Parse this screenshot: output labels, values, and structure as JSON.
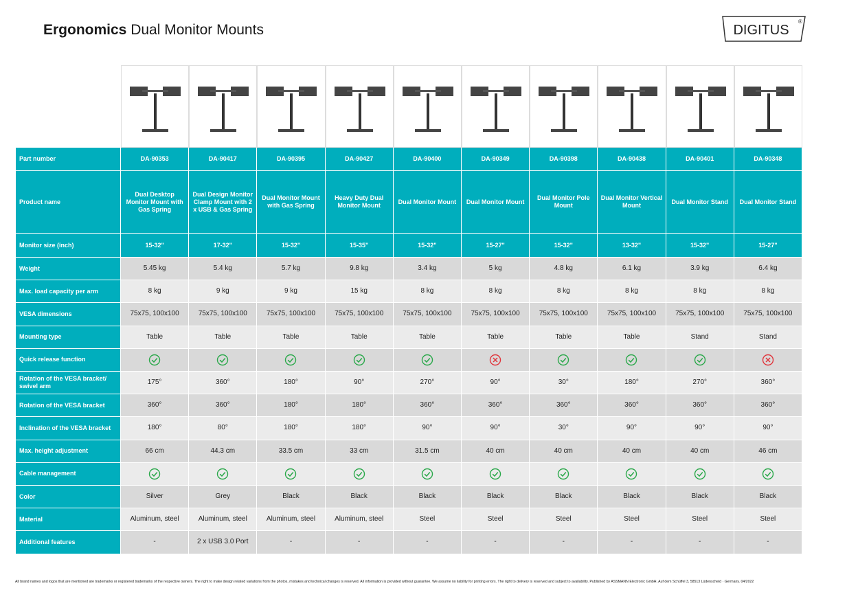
{
  "header": {
    "title_bold": "Ergonomics",
    "title": "Dual Monitor Mounts",
    "logo": "DIGITUS",
    "logo_mark": "®"
  },
  "table": {
    "rows": [
      {
        "label": "Part number",
        "values": [
          "DA-90353",
          "DA-90417",
          "DA-90395",
          "DA-90427",
          "DA-90400",
          "DA-90349",
          "DA-90398",
          "DA-90438",
          "DA-90401",
          "DA-90348"
        ]
      },
      {
        "label": "Product name",
        "values": [
          "Dual Desktop Monitor Mount with Gas Spring",
          "Dual Design Monitor Clamp Mount with 2 x USB & Gas Spring",
          "Dual Monitor Mount with Gas Spring",
          "Heavy Duty Dual Monitor Mount",
          "Dual Monitor Mount",
          "Dual Monitor Mount",
          "Dual Monitor Pole Mount",
          "Dual Monitor Vertical Mount",
          "Dual Monitor Stand",
          "Dual Monitor Stand"
        ]
      },
      {
        "label": "Monitor size (inch)",
        "values": [
          "15-32\"",
          "17-32\"",
          "15-32\"",
          "15-35\"",
          "15-32\"",
          "15-27\"",
          "15-32\"",
          "13-32\"",
          "15-32\"",
          "15-27\""
        ]
      },
      {
        "label": "Weight",
        "values": [
          "5.45 kg",
          "5.4 kg",
          "5.7 kg",
          "9.8 kg",
          "3.4 kg",
          "5 kg",
          "4.8 kg",
          "6.1 kg",
          "3.9 kg",
          "6.4 kg"
        ]
      },
      {
        "label": "Max. load capacity per arm",
        "values": [
          "8 kg",
          "9 kg",
          "9 kg",
          "15 kg",
          "8 kg",
          "8 kg",
          "8 kg",
          "8 kg",
          "8 kg",
          "8 kg"
        ]
      },
      {
        "label": "VESA dimensions",
        "values": [
          "75x75, 100x100",
          "75x75, 100x100",
          "75x75, 100x100",
          "75x75, 100x100",
          "75x75, 100x100",
          "75x75, 100x100",
          "75x75, 100x100",
          "75x75, 100x100",
          "75x75, 100x100",
          "75x75, 100x100"
        ]
      },
      {
        "label": "Mounting type",
        "values": [
          "Table",
          "Table",
          "Table",
          "Table",
          "Table",
          "Table",
          "Table",
          "Table",
          "Stand",
          "Stand"
        ]
      },
      {
        "label": "Quick release function",
        "values": [
          true,
          true,
          true,
          true,
          true,
          false,
          true,
          true,
          true,
          false
        ]
      },
      {
        "label": "Rotation of the VESA bracket/ swivel arm",
        "values": [
          "175°",
          "360°",
          "180°",
          "90°",
          "270°",
          "90°",
          "30°",
          "180°",
          "270°",
          "360°"
        ]
      },
      {
        "label": "Rotation of the VESA bracket",
        "values": [
          "360°",
          "360°",
          "180°",
          "180°",
          "360°",
          "360°",
          "360°",
          "360°",
          "360°",
          "360°"
        ]
      },
      {
        "label": "Inclination of the VESA bracket",
        "values": [
          "180°",
          "80°",
          "180°",
          "180°",
          "90°",
          "90°",
          "30°",
          "90°",
          "90°",
          "90°"
        ]
      },
      {
        "label": "Max. height adjustment",
        "values": [
          "66 cm",
          "44.3 cm",
          "33.5 cm",
          "33 cm",
          "31.5 cm",
          "40 cm",
          "40 cm",
          "40 cm",
          "40 cm",
          "46 cm"
        ]
      },
      {
        "label": "Cable management",
        "values": [
          true,
          true,
          true,
          true,
          true,
          true,
          true,
          true,
          true,
          true
        ]
      },
      {
        "label": "Color",
        "values": [
          "Silver",
          "Grey",
          "Black",
          "Black",
          "Black",
          "Black",
          "Black",
          "Black",
          "Black",
          "Black"
        ]
      },
      {
        "label": "Material",
        "values": [
          "Aluminum, steel",
          "Aluminum, steel",
          "Aluminum, steel",
          "Aluminum, steel",
          "Steel",
          "Steel",
          "Steel",
          "Steel",
          "Steel",
          "Steel"
        ]
      },
      {
        "label": "Additional features",
        "values": [
          "-",
          "2 x USB 3.0 Port",
          "-",
          "-",
          "-",
          "-",
          "-",
          "-",
          "-",
          "-"
        ]
      }
    ]
  },
  "footer": "All brand names and logos that are mentioned are trademarks or registered trademarks of the respective owners. The right to make design related variations from the photos, mistakes and technical changes is reserved. All information is provided without guarantee. We assume no liability for printing errors. The right to delivery is reserved and subject to availability. Published by ASSMANN Electronic GmbH, Auf dem Schüffel 3, 58513 Lüdenscheid · Germany. 04/2022"
}
